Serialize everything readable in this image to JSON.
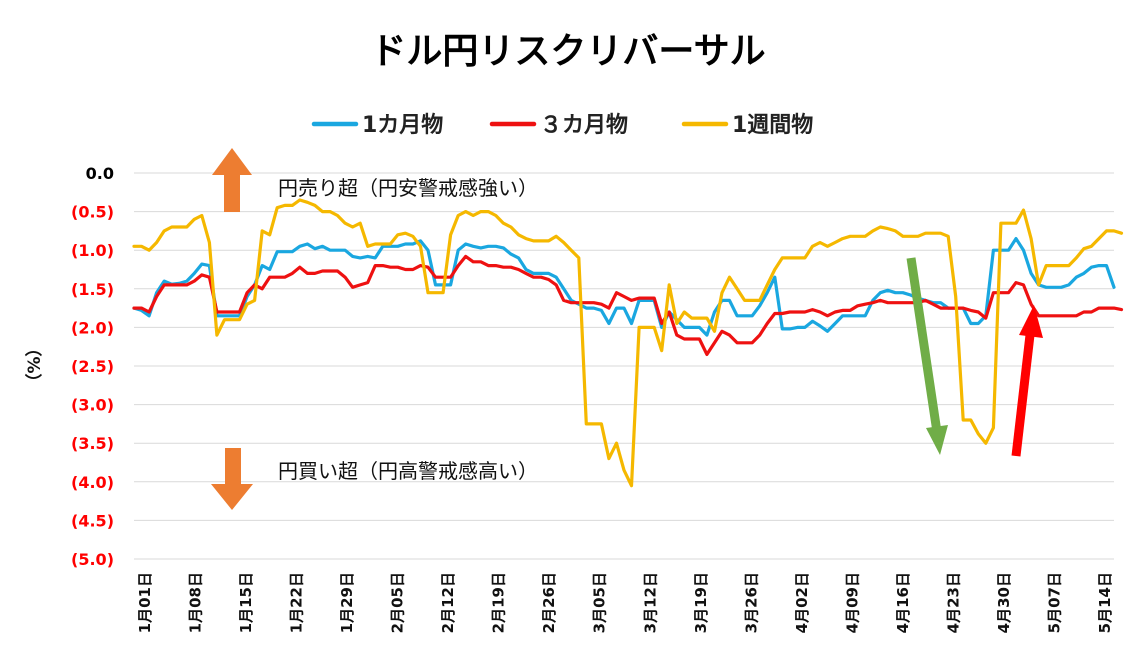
{
  "chart_data": {
    "type": "line",
    "title": "ドル円リスクリバーサル",
    "ylabel": "（%）",
    "ylim": [
      -5.0,
      0.0
    ],
    "y_ticks": [
      {
        "value": 0.0,
        "label": "0.0"
      },
      {
        "value": -0.5,
        "label": "(0.5)"
      },
      {
        "value": -1.0,
        "label": "(1.0)"
      },
      {
        "value": -1.5,
        "label": "(1.5)"
      },
      {
        "value": -2.0,
        "label": "(2.0)"
      },
      {
        "value": -2.5,
        "label": "(2.5)"
      },
      {
        "value": -3.0,
        "label": "(3.0)"
      },
      {
        "value": -3.5,
        "label": "(3.5)"
      },
      {
        "value": -4.0,
        "label": "(4.0)"
      },
      {
        "value": -4.5,
        "label": "(4.5)"
      },
      {
        "value": -5.0,
        "label": "(5.0)"
      }
    ],
    "x_tick_labels": [
      "1月01日",
      "1月08日",
      "1月15日",
      "1月22日",
      "1月29日",
      "2月05日",
      "2月12日",
      "2月19日",
      "2月26日",
      "3月05日",
      "3月12日",
      "3月19日",
      "3月26日",
      "4月02日",
      "4月09日",
      "4月16日",
      "4月23日",
      "4月30日",
      "5月07日",
      "5月14日"
    ],
    "legend_position": "top",
    "grid": true,
    "series": [
      {
        "name": "1カ月物",
        "color": "#1aa7e0",
        "values": [
          -1.75,
          -1.78,
          -1.85,
          -1.55,
          -1.4,
          -1.44,
          -1.43,
          -1.4,
          -1.3,
          -1.18,
          -1.2,
          -1.85,
          -1.85,
          -1.85,
          -1.85,
          -1.6,
          -1.45,
          -1.2,
          -1.25,
          -1.02,
          -1.02,
          -1.02,
          -0.95,
          -0.92,
          -0.98,
          -0.95,
          -1.0,
          -1.0,
          -1.0,
          -1.08,
          -1.1,
          -1.08,
          -1.1,
          -0.95,
          -0.95,
          -0.95,
          -0.92,
          -0.92,
          -0.88,
          -1.0,
          -1.45,
          -1.45,
          -1.45,
          -1.0,
          -0.92,
          -0.95,
          -0.97,
          -0.95,
          -0.95,
          -0.97,
          -1.05,
          -1.1,
          -1.25,
          -1.3,
          -1.3,
          -1.3,
          -1.35,
          -1.5,
          -1.65,
          -1.7,
          -1.75,
          -1.75,
          -1.78,
          -1.95,
          -1.75,
          -1.75,
          -1.95,
          -1.65,
          -1.65,
          -1.65,
          -2.0,
          -1.8,
          -1.9,
          -2.0,
          -2.0,
          -2.0,
          -2.1,
          -1.8,
          -1.65,
          -1.65,
          -1.85,
          -1.85,
          -1.85,
          -1.72,
          -1.55,
          -1.35,
          -2.02,
          -2.02,
          -2.0,
          -2.0,
          -1.92,
          -1.98,
          -2.05,
          -1.95,
          -1.85,
          -1.85,
          -1.85,
          -1.85,
          -1.65,
          -1.55,
          -1.52,
          -1.55,
          -1.55,
          -1.58,
          -1.62,
          -1.65,
          -1.68,
          -1.68,
          -1.75,
          -1.75,
          -1.75,
          -1.95,
          -1.95,
          -1.85,
          -1.0,
          -1.0,
          -1.0,
          -0.85,
          -1.0,
          -1.3,
          -1.45,
          -1.48,
          -1.48,
          -1.48,
          -1.45,
          -1.35,
          -1.3,
          -1.22,
          -1.2,
          -1.2,
          -1.48
        ]
      },
      {
        "name": "３カ月物",
        "color": "#ee1111",
        "values": [
          -1.75,
          -1.75,
          -1.8,
          -1.6,
          -1.45,
          -1.45,
          -1.45,
          -1.45,
          -1.4,
          -1.32,
          -1.35,
          -1.8,
          -1.8,
          -1.8,
          -1.8,
          -1.55,
          -1.45,
          -1.5,
          -1.35,
          -1.35,
          -1.35,
          -1.3,
          -1.22,
          -1.3,
          -1.3,
          -1.27,
          -1.27,
          -1.27,
          -1.35,
          -1.48,
          -1.45,
          -1.42,
          -1.2,
          -1.2,
          -1.22,
          -1.22,
          -1.25,
          -1.25,
          -1.2,
          -1.22,
          -1.35,
          -1.35,
          -1.35,
          -1.2,
          -1.08,
          -1.15,
          -1.15,
          -1.2,
          -1.2,
          -1.22,
          -1.22,
          -1.25,
          -1.3,
          -1.35,
          -1.35,
          -1.38,
          -1.45,
          -1.65,
          -1.68,
          -1.68,
          -1.68,
          -1.68,
          -1.7,
          -1.75,
          -1.55,
          -1.6,
          -1.65,
          -1.62,
          -1.62,
          -1.62,
          -1.95,
          -1.8,
          -2.1,
          -2.15,
          -2.15,
          -2.15,
          -2.35,
          -2.2,
          -2.05,
          -2.1,
          -2.2,
          -2.2,
          -2.2,
          -2.1,
          -1.95,
          -1.82,
          -1.82,
          -1.8,
          -1.8,
          -1.8,
          -1.77,
          -1.8,
          -1.85,
          -1.8,
          -1.78,
          -1.78,
          -1.72,
          -1.7,
          -1.68,
          -1.65,
          -1.68,
          -1.68,
          -1.68,
          -1.68,
          -1.68,
          -1.65,
          -1.7,
          -1.75,
          -1.75,
          -1.75,
          -1.75,
          -1.78,
          -1.8,
          -1.88,
          -1.55,
          -1.55,
          -1.55,
          -1.42,
          -1.45,
          -1.7,
          -1.85,
          -1.85,
          -1.85,
          -1.85,
          -1.85,
          -1.85,
          -1.8,
          -1.8,
          -1.75,
          -1.75,
          -1.75,
          -1.77
        ]
      },
      {
        "name": "1週間物",
        "color": "#f5b800",
        "values": [
          -0.95,
          -0.95,
          -1.0,
          -0.9,
          -0.75,
          -0.7,
          -0.7,
          -0.7,
          -0.6,
          -0.55,
          -0.9,
          -2.1,
          -1.9,
          -1.9,
          -1.9,
          -1.7,
          -1.65,
          -0.75,
          -0.8,
          -0.45,
          -0.42,
          -0.42,
          -0.35,
          -0.38,
          -0.42,
          -0.5,
          -0.5,
          -0.55,
          -0.65,
          -0.7,
          -0.65,
          -0.95,
          -0.92,
          -0.92,
          -0.92,
          -0.8,
          -0.78,
          -0.82,
          -0.95,
          -1.55,
          -1.55,
          -1.55,
          -0.8,
          -0.55,
          -0.5,
          -0.55,
          -0.5,
          -0.5,
          -0.55,
          -0.65,
          -0.7,
          -0.8,
          -0.85,
          -0.88,
          -0.88,
          -0.88,
          -0.82,
          -0.9,
          -1.0,
          -1.1,
          -3.25,
          -3.25,
          -3.25,
          -3.7,
          -3.5,
          -3.85,
          -4.05,
          -2.0,
          -2.0,
          -2.0,
          -2.3,
          -1.45,
          -1.95,
          -1.8,
          -1.88,
          -1.88,
          -1.88,
          -2.05,
          -1.55,
          -1.35,
          -1.5,
          -1.65,
          -1.65,
          -1.65,
          -1.45,
          -1.25,
          -1.1,
          -1.1,
          -1.1,
          -1.1,
          -0.95,
          -0.9,
          -0.95,
          -0.9,
          -0.85,
          -0.82,
          -0.82,
          -0.82,
          -0.75,
          -0.7,
          -0.72,
          -0.75,
          -0.82,
          -0.82,
          -0.82,
          -0.78,
          -0.78,
          -0.78,
          -0.82,
          -1.6,
          -3.2,
          -3.2,
          -3.38,
          -3.5,
          -3.3,
          -0.65,
          -0.65,
          -0.65,
          -0.48,
          -0.85,
          -1.45,
          -1.2,
          -1.2,
          -1.2,
          -1.2,
          -1.1,
          -0.98,
          -0.95,
          -0.85,
          -0.75,
          -0.75,
          -0.78
        ]
      }
    ],
    "annotations": {
      "top": "円売り超（円安警戒感強い）",
      "bottom": "円買い超（円高警戒感高い）"
    }
  },
  "colors": {
    "orange_arrow": "#ed7d31",
    "green_arrow": "#70ad47",
    "red_arrow": "#ff0000",
    "ytick_red": "#ff0000",
    "ytick_black": "#000000"
  }
}
